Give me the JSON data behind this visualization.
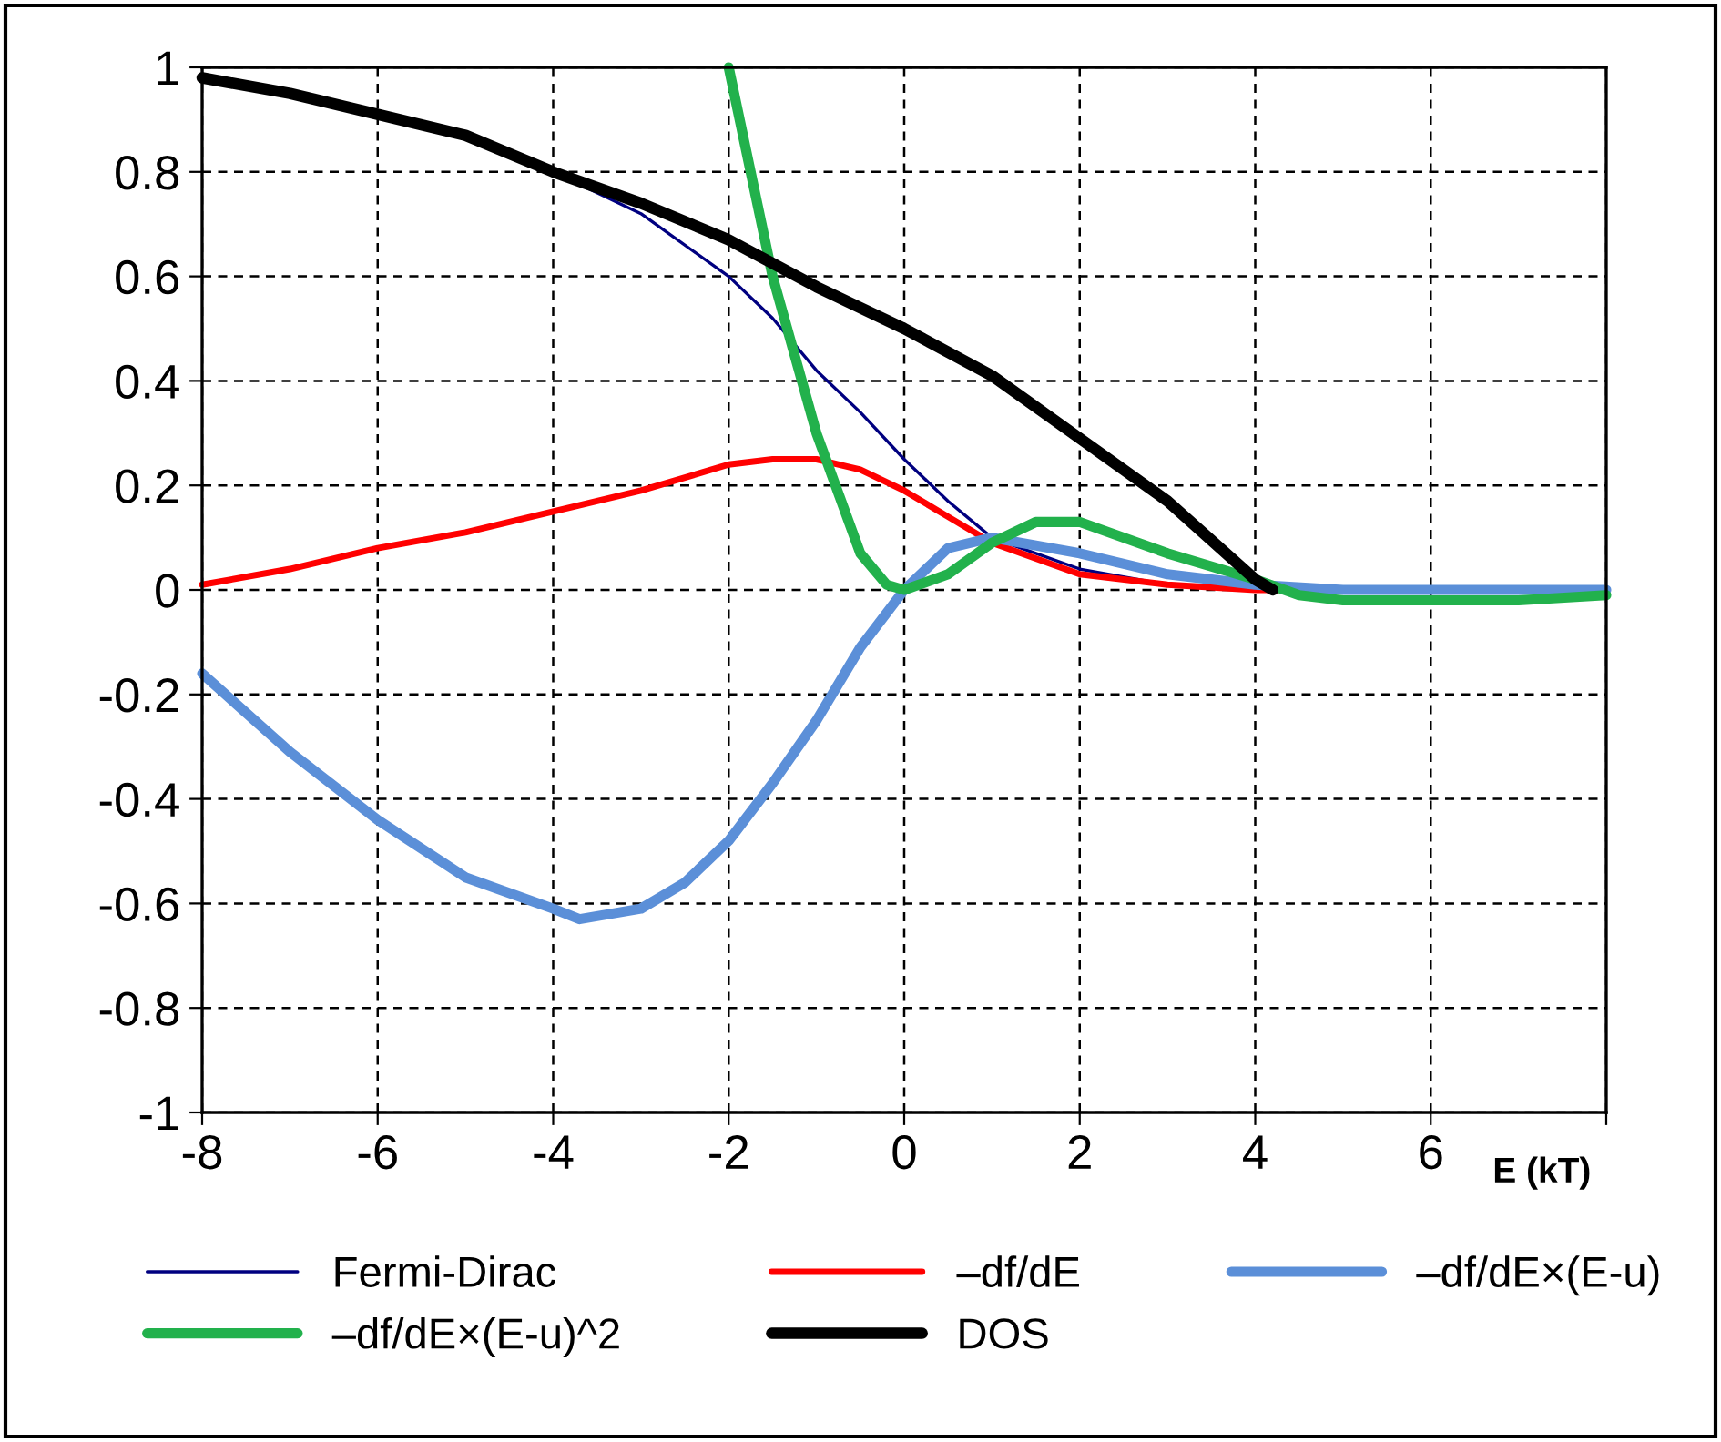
{
  "chart_data": {
    "type": "line",
    "xlabel": "E (kT)",
    "xlim": [
      -8,
      8
    ],
    "ylim": [
      -1,
      1
    ],
    "xticks": [
      -8,
      -6,
      -4,
      -2,
      0,
      2,
      4,
      6,
      {
        "value": 8,
        "label": null
      }
    ],
    "yticks": [
      -1,
      -0.8,
      -0.6,
      -0.4,
      -0.2,
      0,
      0.2,
      0.4,
      0.6,
      0.8,
      1
    ],
    "grid": true,
    "legend": "bottom",
    "marker": "none",
    "line_style": "solid",
    "series": [
      {
        "name": "Fermi-Dirac",
        "color": "#000080",
        "x": [
          -5,
          -4,
          -3,
          -2,
          -1.5,
          -1,
          -0.5,
          0,
          0.5,
          1,
          1.5,
          2,
          3,
          4,
          5,
          6,
          7,
          8
        ],
        "values": [
          0.87,
          0.8,
          0.72,
          0.6,
          0.52,
          0.42,
          0.34,
          0.25,
          0.17,
          0.1,
          0.07,
          0.04,
          0.01,
          0,
          0,
          0,
          0,
          0
        ]
      },
      {
        "name": "–df/dE",
        "color": "#ff0000",
        "x": [
          -8,
          -7,
          -6,
          -5,
          -4,
          -3,
          -2,
          -1.5,
          -1,
          -0.5,
          0,
          0.5,
          1,
          1.5,
          2,
          3,
          4,
          5
        ],
        "values": [
          0.01,
          0.04,
          0.08,
          0.11,
          0.15,
          0.19,
          0.24,
          0.25,
          0.25,
          0.23,
          0.19,
          0.14,
          0.09,
          0.06,
          0.03,
          0.01,
          0,
          0
        ]
      },
      {
        "name": "–df/dE×(E-u)",
        "color": "#5b8fd8",
        "x": [
          -8,
          -7,
          -6,
          -5,
          -4,
          -3.7,
          -3,
          -2.5,
          -2,
          -1.5,
          -1,
          -0.5,
          0,
          0.5,
          1,
          2,
          3,
          4,
          5,
          6,
          7,
          8
        ],
        "values": [
          -0.16,
          -0.31,
          -0.44,
          -0.55,
          -0.61,
          -0.63,
          -0.61,
          -0.56,
          -0.48,
          -0.37,
          -0.25,
          -0.11,
          0,
          0.08,
          0.1,
          0.07,
          0.03,
          0.01,
          0,
          0,
          0,
          0
        ]
      },
      {
        "name": "–df/dE×(E-u)^2",
        "color": "#22b14c",
        "x": [
          -2,
          -1.5,
          -1,
          -0.5,
          -0.2,
          0,
          0.5,
          1,
          1.5,
          2,
          3,
          4,
          4.5,
          5,
          6,
          7,
          8
        ],
        "values": [
          1,
          0.6,
          0.3,
          0.07,
          0.01,
          0,
          0.03,
          0.09,
          0.13,
          0.13,
          0.07,
          0.02,
          -0.01,
          -0.02,
          -0.02,
          -0.02,
          -0.01
        ]
      },
      {
        "name": "DOS",
        "color": "#000000",
        "x": [
          -8,
          -7,
          -6,
          -5,
          -4,
          -3,
          -2,
          -1,
          0,
          1,
          2,
          3,
          4,
          4.2
        ],
        "values": [
          0.98,
          0.95,
          0.91,
          0.87,
          0.8,
          0.74,
          0.67,
          0.58,
          0.5,
          0.41,
          0.29,
          0.17,
          0.02,
          0
        ]
      }
    ]
  }
}
